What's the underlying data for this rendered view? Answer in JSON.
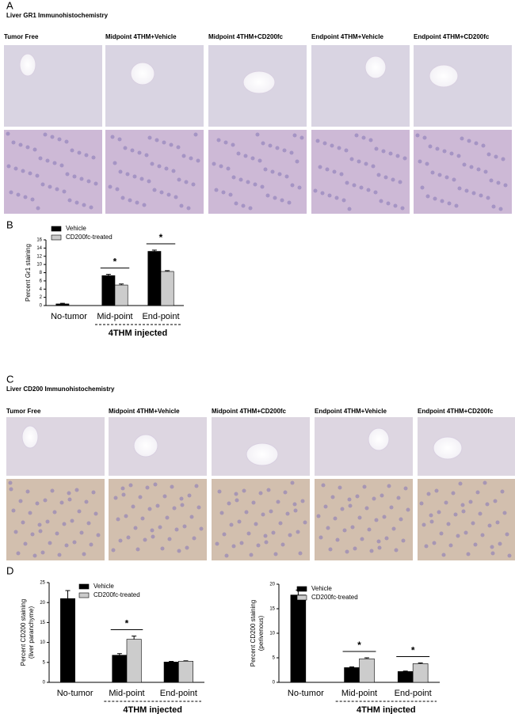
{
  "panel_labels": [
    "A",
    "B",
    "C",
    "D"
  ],
  "gr1": {
    "title": "Liver GR1 Immunohistochemistry",
    "columns": [
      "Tumor Free",
      "Midpoint 4THM+Vehicle",
      "Midpoint 4THM+CD200fc",
      "Endpoint 4THM+Vehicle",
      "Endpoint 4THM+CD200fc"
    ]
  },
  "cd200": {
    "title": "Liver CD200 Immunohistochemistry",
    "columns": [
      "Tumor Free",
      "Midpoint 4THM+Vehicle",
      "Midpoint 4THM+CD200fc",
      "Endpoint 4THM+Vehicle",
      "Endpoint 4THM+CD200fc"
    ]
  },
  "chart_data": [
    {
      "type": "bar",
      "ylabel": [
        "Percent Gr1 staining"
      ],
      "categories": [
        "No-tumor",
        "Mid-point",
        "End-point"
      ],
      "group_label": "4THM injected",
      "series": [
        {
          "name": "Vehicle",
          "color": "#000000",
          "values": [
            0.4,
            7.3,
            13.2
          ],
          "errors": [
            0.15,
            0.3,
            0.3
          ]
        },
        {
          "name": "CD200fc-treated",
          "color": "#cccccc",
          "values": [
            null,
            5.0,
            8.3
          ],
          "errors": [
            null,
            0.25,
            0.2
          ]
        }
      ],
      "ylim": [
        0,
        16
      ],
      "yticks": [
        0,
        2,
        4,
        6,
        8,
        10,
        12,
        14,
        16
      ],
      "annotations": [
        "*",
        "*"
      ]
    },
    {
      "type": "bar",
      "ylabel": [
        "Percent CD200 staining",
        "(liver paranchyme)"
      ],
      "categories": [
        "No-tumor",
        "Mid-point",
        "End-point"
      ],
      "group_label": "4THM injected",
      "series": [
        {
          "name": "Vehicle",
          "color": "#000000",
          "values": [
            21,
            6.8,
            5.1
          ],
          "errors": [
            2,
            0.4,
            0.15
          ]
        },
        {
          "name": "CD200fc-treated",
          "color": "#cccccc",
          "values": [
            null,
            10.8,
            5.3
          ],
          "errors": [
            null,
            0.8,
            0.1
          ]
        }
      ],
      "ylim": [
        0,
        25
      ],
      "yticks": [
        0,
        5,
        10,
        15,
        20,
        25
      ],
      "annotations": [
        "*"
      ]
    },
    {
      "type": "bar",
      "ylabel": [
        "Percent CD200 staining",
        "(perivenous)"
      ],
      "categories": [
        "No-tumor",
        "Mid-point",
        "End-point"
      ],
      "group_label": "4THM injected",
      "series": [
        {
          "name": "Vehicle",
          "color": "#000000",
          "values": [
            17.8,
            3.0,
            2.2
          ],
          "errors": [
            1,
            0.15,
            0.1
          ]
        },
        {
          "name": "CD200fc-treated",
          "color": "#cccccc",
          "values": [
            null,
            4.8,
            3.8
          ],
          "errors": [
            null,
            0.2,
            0.15
          ]
        }
      ],
      "ylim": [
        0,
        20
      ],
      "yticks": [
        0,
        5,
        10,
        15,
        20
      ],
      "annotations": [
        "*",
        "*"
      ]
    }
  ]
}
